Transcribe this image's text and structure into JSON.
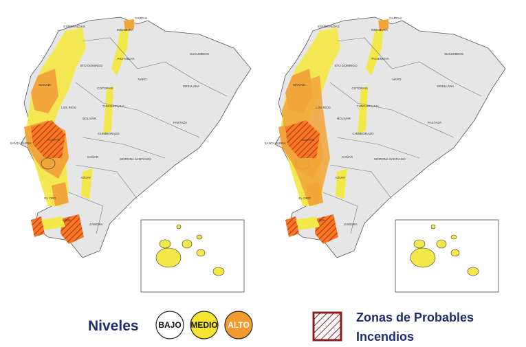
{
  "maps": {
    "province_labels": [
      "ESMERALDAS",
      "CARCHI",
      "IMBABURA",
      "PICHINCHA",
      "SUCUMBIOS",
      "STO DOMINGO",
      "MANABI",
      "NAPO",
      "ORELLANA",
      "COTOPAXI",
      "LOS RIOS",
      "TUNGURAHUA",
      "BOLIVAR",
      "PASTAZA",
      "CHIMBORAZO",
      "SANTA ELENA",
      "GUAYAS",
      "CAÑAR",
      "MORONA SANTIAGO",
      "AZUAY",
      "EL ORO",
      "LOJA",
      "ZAMORA"
    ]
  },
  "legend": {
    "levels_title": "Niveles",
    "levels": [
      "BAJO",
      "MEDIO",
      "ALTO"
    ],
    "fire_zones": [
      "Zonas de Probables",
      "Incendios"
    ]
  }
}
